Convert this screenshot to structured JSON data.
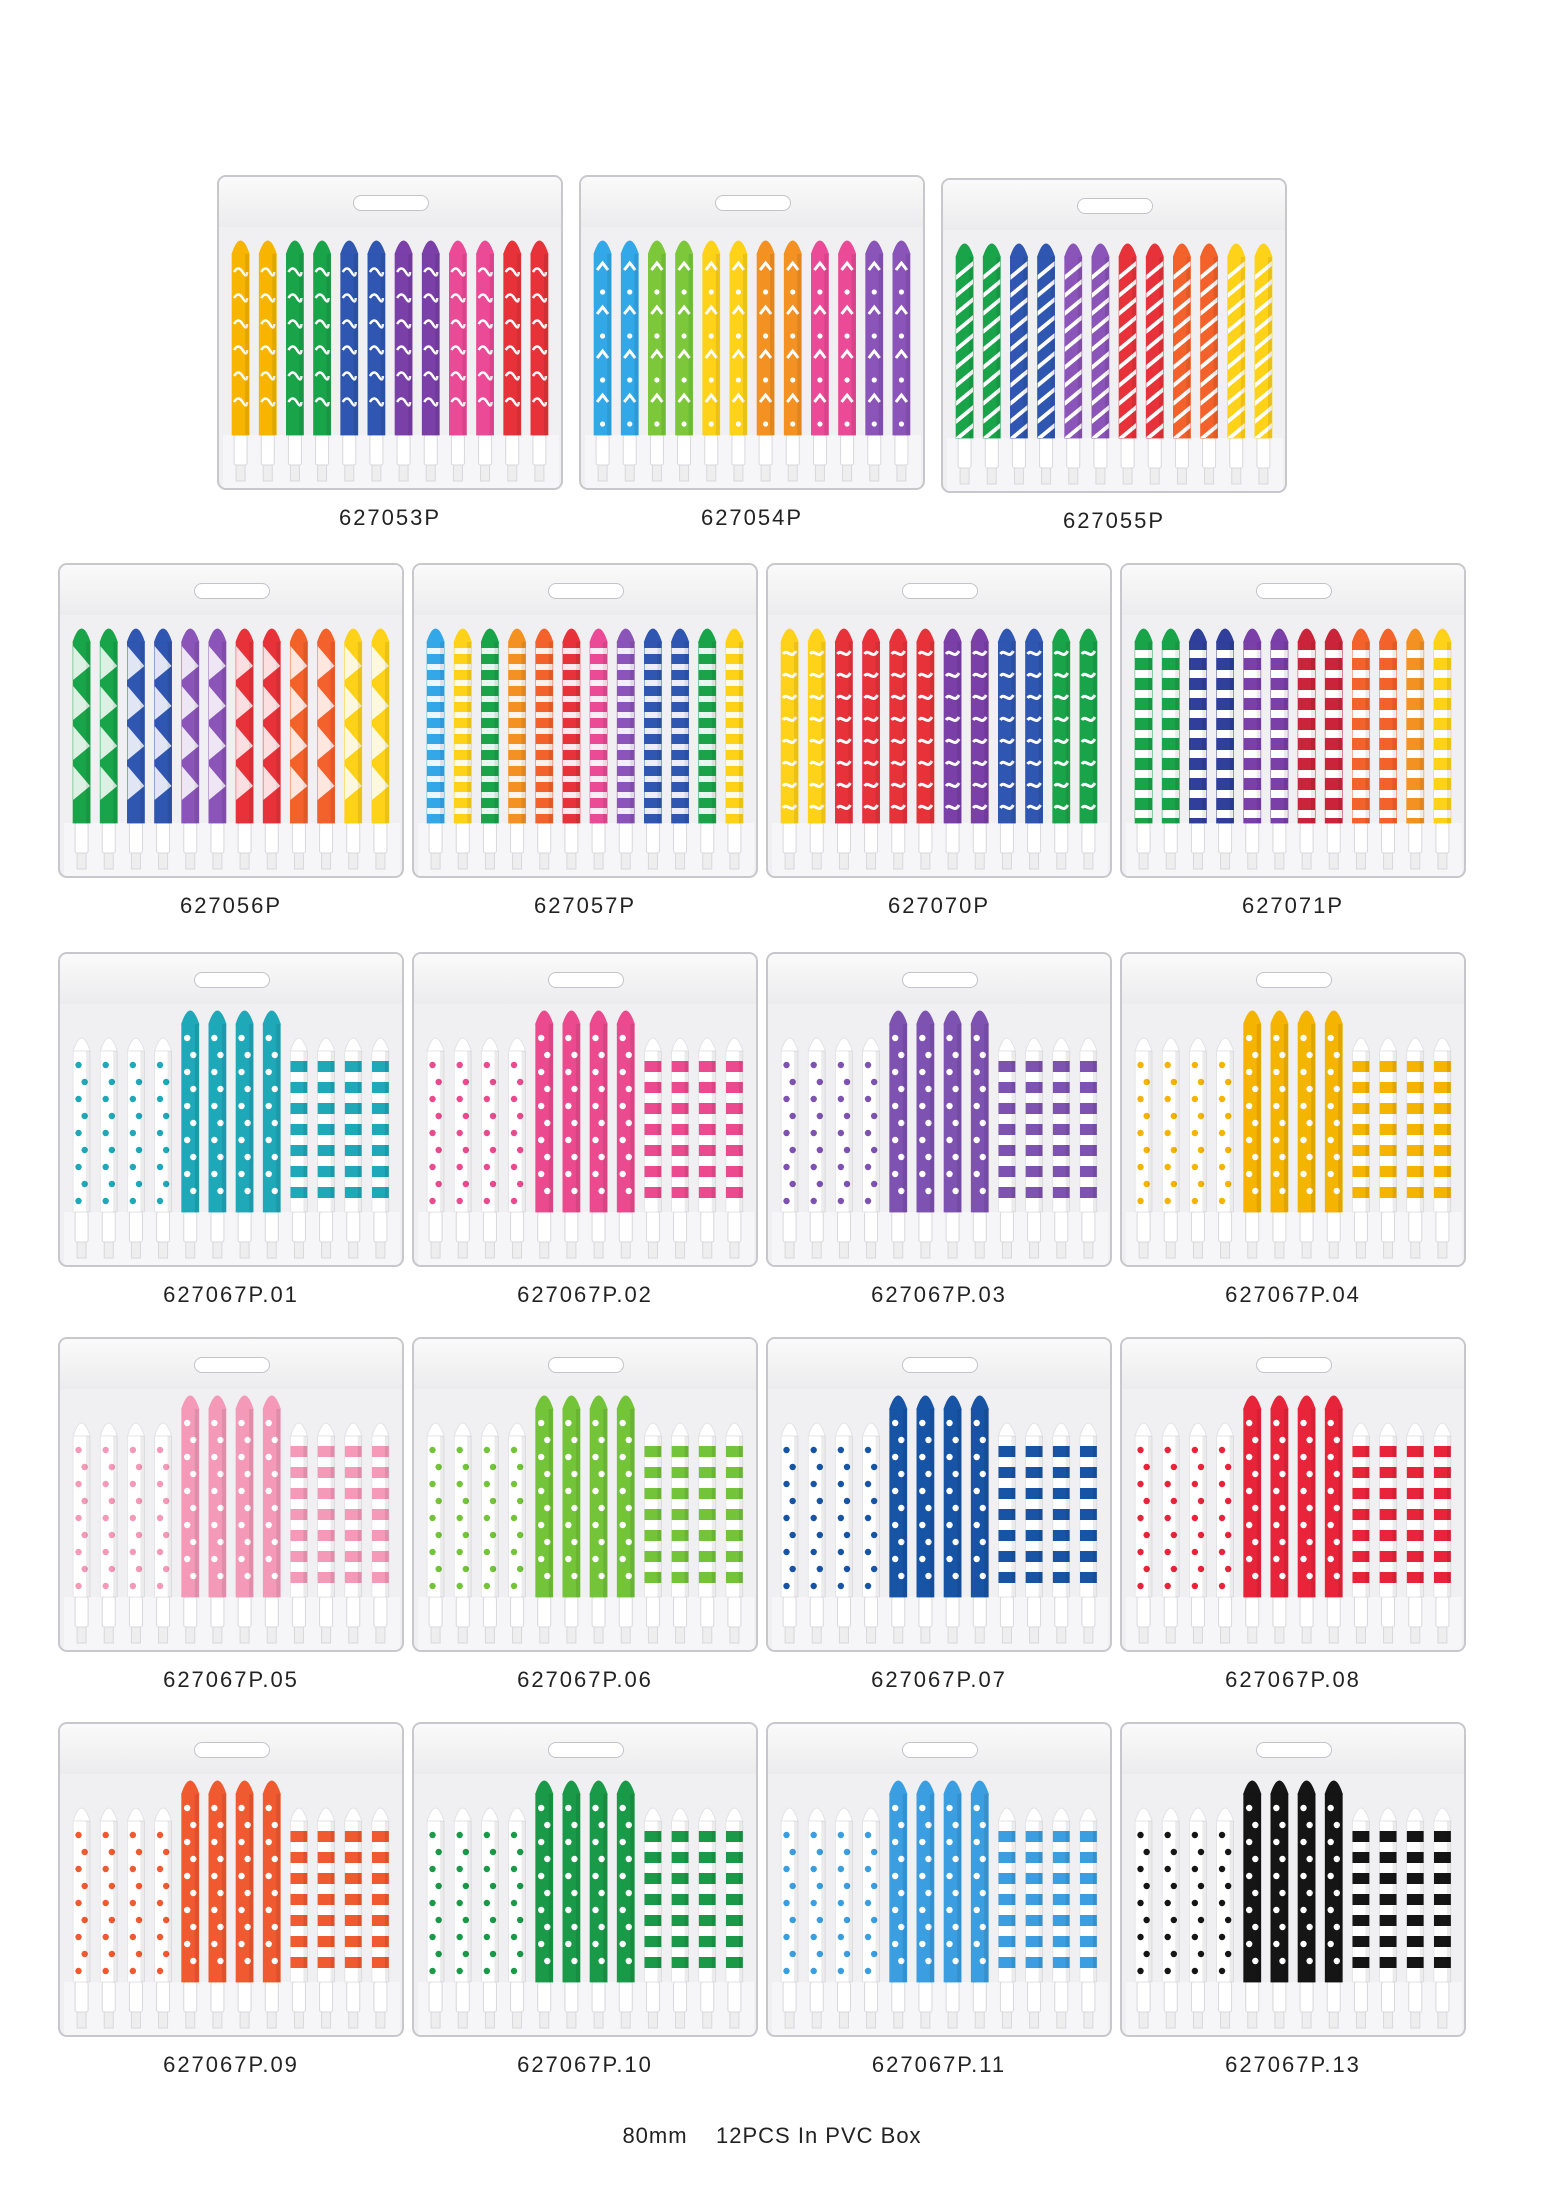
{
  "footer": {
    "size": "80mm",
    "description": "12PCS In PVC Box"
  },
  "products": [
    {
      "code": "627053P",
      "pattern": "wave",
      "colors": [
        "#f7b500",
        "#f7b500",
        "#1aa44a",
        "#1aa44a",
        "#2f56b0",
        "#2f56b0",
        "#7b3fa8",
        "#7b3fa8",
        "#ea4a96",
        "#ea4a96",
        "#e8323a",
        "#e8323a"
      ]
    },
    {
      "code": "627054P",
      "pattern": "chevron-dots",
      "colors": [
        "#33a8e8",
        "#33a8e8",
        "#7cc83a",
        "#7cc83a",
        "#ffd21a",
        "#ffd21a",
        "#f39223",
        "#f39223",
        "#ea4a96",
        "#ea4a96",
        "#8a54b8",
        "#8a54b8"
      ]
    },
    {
      "code": "627055P",
      "pattern": "zebra",
      "colors": [
        "#1aa44a",
        "#1aa44a",
        "#2f56b0",
        "#2f56b0",
        "#8a54b8",
        "#8a54b8",
        "#e8323a",
        "#e8323a",
        "#f3622a",
        "#f3622a",
        "#ffd21a",
        "#ffd21a"
      ]
    },
    {
      "code": "627056P",
      "pattern": "geometric",
      "colors": [
        "#1aa44a",
        "#1aa44a",
        "#2f56b0",
        "#2f56b0",
        "#8a54b8",
        "#8a54b8",
        "#e8323a",
        "#e8323a",
        "#f3622a",
        "#f3622a",
        "#ffd21a",
        "#ffd21a"
      ]
    },
    {
      "code": "627057P",
      "pattern": "multi-stripe",
      "colors": [
        "#33a8e8",
        "#ffd21a",
        "#1aa44a",
        "#f39223",
        "#f3622a",
        "#e8323a",
        "#ea4a96",
        "#8a54b8",
        "#2f56b0",
        "#2f56b0",
        "#1aa44a",
        "#ffd21a"
      ]
    },
    {
      "code": "627070P",
      "pattern": "animal",
      "colors": [
        "#ffd21a",
        "#ffd21a",
        "#e8323a",
        "#e8323a",
        "#e8323a",
        "#e8323a",
        "#7b3fa8",
        "#7b3fa8",
        "#2f56b0",
        "#2f56b0",
        "#1aa44a",
        "#1aa44a"
      ]
    },
    {
      "code": "627071P",
      "pattern": "stripe",
      "colors": [
        "#1aa44a",
        "#1aa44a",
        "#2f3f9a",
        "#2f3f9a",
        "#7b3fa8",
        "#7b3fa8",
        "#c9243a",
        "#c9243a",
        "#f3622a",
        "#f3622a",
        "#f39223",
        "#ffd21a"
      ]
    },
    {
      "code": "627067P.01",
      "pattern": "trio",
      "colors": [
        "#1fa8b8"
      ]
    },
    {
      "code": "627067P.02",
      "pattern": "trio",
      "colors": [
        "#ec4a8e"
      ]
    },
    {
      "code": "627067P.03",
      "pattern": "trio",
      "colors": [
        "#7e52b0"
      ]
    },
    {
      "code": "627067P.04",
      "pattern": "trio",
      "colors": [
        "#f4b400"
      ]
    },
    {
      "code": "627067P.05",
      "pattern": "trio",
      "colors": [
        "#f49ab8"
      ]
    },
    {
      "code": "627067P.06",
      "pattern": "trio",
      "colors": [
        "#74c43a"
      ]
    },
    {
      "code": "627067P.07",
      "pattern": "trio",
      "colors": [
        "#1854a6"
      ]
    },
    {
      "code": "627067P.08",
      "pattern": "trio",
      "colors": [
        "#e8243a"
      ]
    },
    {
      "code": "627067P.09",
      "pattern": "trio",
      "colors": [
        "#f05a30"
      ]
    },
    {
      "code": "627067P.10",
      "pattern": "trio",
      "colors": [
        "#1a9a48"
      ]
    },
    {
      "code": "627067P.11",
      "pattern": "trio",
      "colors": [
        "#3a9ee0"
      ]
    },
    {
      "code": "627067P.13",
      "pattern": "trio",
      "colors": [
        "#151515"
      ]
    }
  ]
}
